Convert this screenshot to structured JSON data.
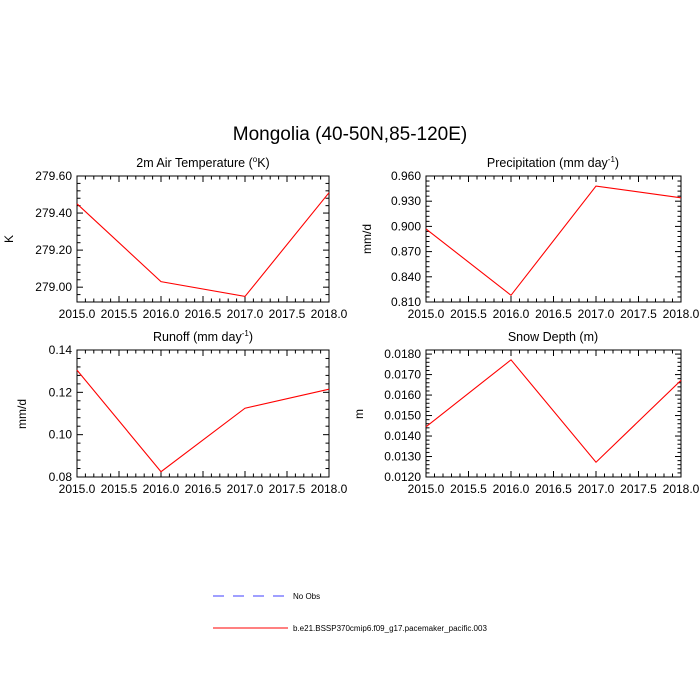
{
  "figure": {
    "title": "Mongolia (40-50N,85-120E)"
  },
  "chart_data": [
    {
      "type": "line",
      "title": "2m Air Temperature (°K)",
      "xlabel": "",
      "ylabel": "K",
      "xlim": [
        2015.0,
        2018.0
      ],
      "ylim": [
        278.92,
        279.6
      ],
      "xticks": [
        "2015.0",
        "2015.5",
        "2016.0",
        "2016.5",
        "2017.0",
        "2017.5",
        "2018.0"
      ],
      "yticks": [
        "279.00",
        "279.20",
        "279.40",
        "279.60"
      ],
      "x": [
        2015,
        2016,
        2017,
        2018
      ],
      "series": [
        {
          "name": "b.e21.BSSP370cmip6.f09_g17.pacemaker_pacific.003",
          "values": [
            279.45,
            279.03,
            278.95,
            279.51
          ]
        }
      ],
      "grid": false
    },
    {
      "type": "line",
      "title": "Precipitation (mm day-1)",
      "xlabel": "",
      "ylabel": "mm/d",
      "xlim": [
        2015.0,
        2018.0
      ],
      "ylim": [
        0.81,
        0.96
      ],
      "xticks": [
        "2015.0",
        "2015.5",
        "2016.0",
        "2016.5",
        "2017.0",
        "2017.5",
        "2018.0"
      ],
      "yticks": [
        "0.810",
        "0.840",
        "0.870",
        "0.900",
        "0.930",
        "0.960"
      ],
      "x": [
        2015,
        2016,
        2017,
        2018
      ],
      "series": [
        {
          "name": "b.e21.BSSP370cmip6.f09_g17.pacemaker_pacific.003",
          "values": [
            0.897,
            0.818,
            0.948,
            0.934
          ]
        }
      ],
      "grid": false
    },
    {
      "type": "line",
      "title": "Runoff (mm day-1)",
      "xlabel": "",
      "ylabel": "mm/d",
      "xlim": [
        2015.0,
        2018.0
      ],
      "ylim": [
        0.08,
        0.14
      ],
      "xticks": [
        "2015.0",
        "2015.5",
        "2016.0",
        "2016.5",
        "2017.0",
        "2017.5",
        "2018.0"
      ],
      "yticks": [
        "0.08",
        "0.10",
        "0.12",
        "0.14"
      ],
      "x": [
        2015,
        2016,
        2017,
        2018
      ],
      "series": [
        {
          "name": "b.e21.BSSP370cmip6.f09_g17.pacemaker_pacific.003",
          "values": [
            0.1305,
            0.0825,
            0.1125,
            0.1215
          ]
        }
      ],
      "grid": false
    },
    {
      "type": "line",
      "title": "Snow Depth (m)",
      "xlabel": "",
      "ylabel": "m",
      "xlim": [
        2015.0,
        2018.0
      ],
      "ylim": [
        0.012,
        0.0182
      ],
      "xticks": [
        "2015.0",
        "2015.5",
        "2016.0",
        "2016.5",
        "2017.0",
        "2017.5",
        "2018.0"
      ],
      "yticks": [
        "0.0120",
        "0.0130",
        "0.0140",
        "0.0150",
        "0.0160",
        "0.0170",
        "0.0180"
      ],
      "x": [
        2015,
        2016,
        2017,
        2018
      ],
      "series": [
        {
          "name": "b.e21.BSSP370cmip6.f09_g17.pacemaker_pacific.003",
          "values": [
            0.01445,
            0.01772,
            0.01272,
            0.01672
          ]
        }
      ],
      "grid": false
    }
  ],
  "legend": {
    "placement": "bottom-center",
    "items": [
      {
        "label": "No Obs",
        "color": "#0000ff",
        "dash": "dashed"
      },
      {
        "label": "b.e21.BSSP370cmip6.f09_g17.pacemaker_pacific.003",
        "color": "#ff0000",
        "dash": "solid"
      }
    ]
  },
  "colors": {
    "series": "#ff0000",
    "obs": "#0000ff",
    "axes": "#000000"
  }
}
